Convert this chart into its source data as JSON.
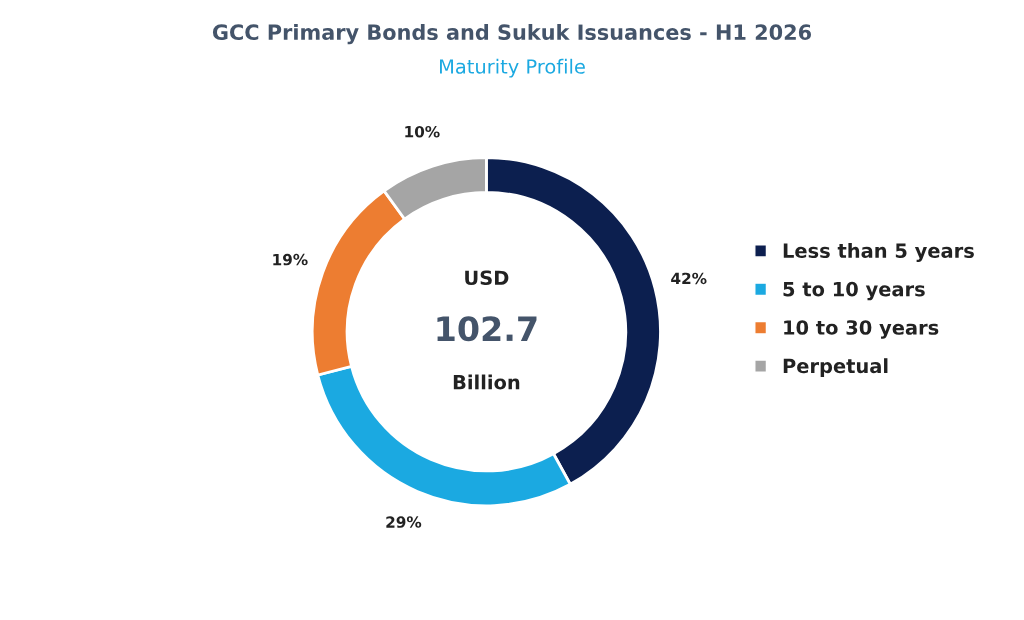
{
  "chart_data": {
    "type": "donut",
    "title": "GCC Primary Bonds and Sukuk Issuances - H1 2026",
    "subtitle": "Maturity Profile",
    "categories": [
      "Less than 5 years",
      "5 to 10 years",
      "10 to 30 years",
      "Perpetual"
    ],
    "values": [
      42,
      29,
      19,
      10
    ],
    "colors": [
      "#0c1f4f",
      "#1ba9e1",
      "#ed7d31",
      "#a5a5a5"
    ],
    "value_labels": [
      "42%",
      "29%",
      "19%",
      "10%"
    ],
    "annotations": [
      "USD",
      "102.7",
      "Billion"
    ],
    "legend": "right"
  }
}
